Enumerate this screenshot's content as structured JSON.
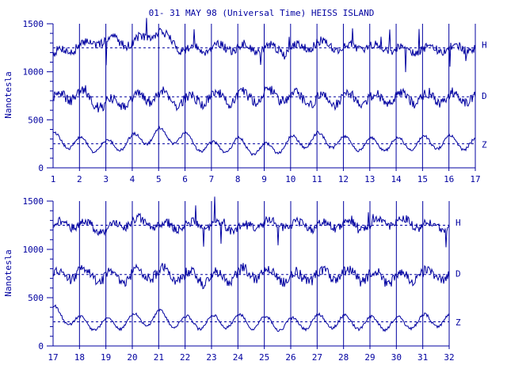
{
  "title": "01- 31 MAY 98 (Universal Time) HEISS ISLAND",
  "ylabel": "Nanotesla",
  "colors": {
    "trace": "#0000a0",
    "background": "#ffffff"
  },
  "chart_data": [
    {
      "type": "line",
      "title": "01- 31 MAY 98 (Universal Time) HEISS ISLAND",
      "xlabel": "",
      "ylabel": "Nanotesla",
      "x_ticks": [
        "1",
        "2",
        "3",
        "4",
        "5",
        "6",
        "7",
        "8",
        "9",
        "10",
        "11",
        "12",
        "13",
        "14",
        "15",
        "16",
        "17"
      ],
      "y_ticks": [
        "0",
        "500",
        "1000",
        "1500"
      ],
      "ylim": [
        0,
        1500
      ],
      "xlim": [
        1,
        17
      ],
      "grid": "vertical lines at each day",
      "series": [
        {
          "name": "H",
          "baseline": 1250,
          "values": [
            1180,
            1260,
            1340,
            1300,
            1420,
            1220,
            1260,
            1250,
            1240,
            1230,
            1300,
            1250,
            1260,
            1240,
            1230,
            1240,
            1250
          ]
        },
        {
          "name": "D",
          "baseline": 740,
          "values": [
            720,
            780,
            650,
            700,
            760,
            690,
            740,
            720,
            760,
            750,
            700,
            730,
            710,
            740,
            720,
            730,
            740
          ]
        },
        {
          "name": "Z",
          "baseline": 250,
          "values": [
            300,
            250,
            220,
            280,
            350,
            300,
            200,
            250,
            180,
            260,
            300,
            260,
            240,
            250,
            260,
            270,
            250
          ]
        }
      ]
    },
    {
      "type": "line",
      "title": "",
      "xlabel": "",
      "ylabel": "Nanotesla",
      "x_ticks": [
        "17",
        "18",
        "19",
        "20",
        "21",
        "22",
        "23",
        "24",
        "25",
        "26",
        "27",
        "28",
        "29",
        "30",
        "31",
        "32"
      ],
      "y_ticks": [
        "0",
        "500",
        "1000",
        "1500"
      ],
      "ylim": [
        0,
        1500
      ],
      "xlim": [
        17,
        32
      ],
      "grid": "vertical lines at each day",
      "series": [
        {
          "name": "H",
          "baseline": 1250,
          "values": [
            1250,
            1270,
            1200,
            1300,
            1250,
            1240,
            1260,
            1220,
            1280,
            1250,
            1240,
            1260,
            1250,
            1300,
            1250,
            1240
          ]
        },
        {
          "name": "D",
          "baseline": 740,
          "values": [
            720,
            760,
            700,
            730,
            760,
            720,
            700,
            740,
            760,
            700,
            730,
            740,
            720,
            700,
            740,
            730
          ]
        },
        {
          "name": "Z",
          "baseline": 250,
          "values": [
            350,
            240,
            220,
            260,
            300,
            240,
            250,
            260,
            240,
            220,
            260,
            250,
            240,
            230,
            260,
            270
          ]
        }
      ]
    }
  ]
}
